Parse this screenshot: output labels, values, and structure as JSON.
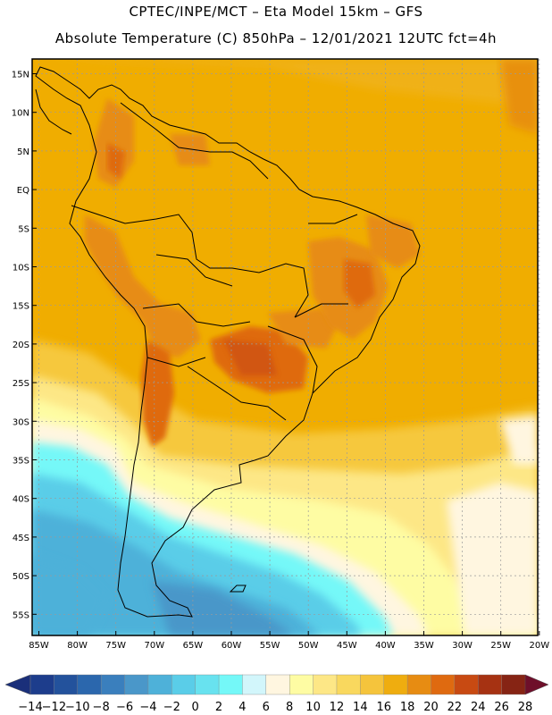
{
  "header": {
    "title_line1": "CPTEC/INPE/MCT  –   Eta Model 15km  –  GFS",
    "title_line2": "Absolute Temperature (C) 850hPa  –  12/01/2021 12UTC fct=4h"
  },
  "map": {
    "lat_labels": [
      "15N",
      "10N",
      "5N",
      "EQ",
      "5S",
      "10S",
      "15S",
      "20S",
      "25S",
      "30S",
      "35S",
      "40S",
      "45S",
      "50S",
      "55S"
    ],
    "lon_labels": [
      "85W",
      "80W",
      "75W",
      "70W",
      "65W",
      "60W",
      "55W",
      "50W",
      "45W",
      "40W",
      "35W",
      "30W",
      "25W",
      "20W"
    ]
  },
  "colorbar": {
    "labels": [
      "-14",
      "-12",
      "-10",
      "-8",
      "-6",
      "-4",
      "-2",
      "0",
      "2",
      "4",
      "6",
      "8",
      "10",
      "12",
      "14",
      "16",
      "18",
      "20",
      "22",
      "24",
      "26",
      "28"
    ],
    "colors": [
      "#1d3d8c",
      "#23529c",
      "#2b67ad",
      "#3a7fbd",
      "#4a97c9",
      "#4eb1d9",
      "#5acde8",
      "#68e2ef",
      "#74f8f8",
      "#d2f6fb",
      "#fff6e0",
      "#fefca3",
      "#fde786",
      "#f9d85e",
      "#f5c43c",
      "#efad0f",
      "#e78c12",
      "#df6a10",
      "#c84a12",
      "#a63212",
      "#862414"
    ],
    "arrow_left_color": "#1a2f7a",
    "arrow_right_color": "#6e0f2a"
  }
}
